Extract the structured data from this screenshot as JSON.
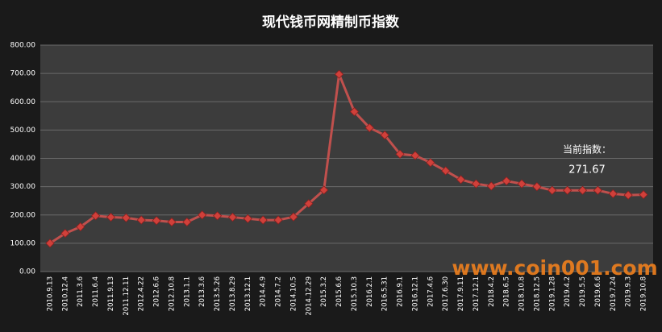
{
  "chart_data": {
    "type": "line",
    "title": "现代钱币网精制币指数",
    "categories": [
      "2010.9.13",
      "2010.12.4",
      "2011.3.6",
      "2011.6.4",
      "2011.9.13",
      "2011.12.11",
      "2012.4.22",
      "2012.6.6",
      "2012.10.8",
      "2013.1.1",
      "2013.3.6",
      "2013.5.26",
      "2013.8.29",
      "2013.12.1",
      "2014.4.9",
      "2014.7.2",
      "2014.10.5",
      "2014.12.29",
      "2015.3.2",
      "2015.6.6",
      "2015.10.3",
      "2016.2.1",
      "2016.5.31",
      "2016.9.1",
      "2016.12.1",
      "2017.4.6",
      "2017.6.30",
      "2017.9.11",
      "2017.12.1",
      "2018.4.2",
      "2018.6.5",
      "2018.10.8",
      "2018.12.5",
      "2019.1.28",
      "2019.4.2",
      "2019.5.5",
      "2019.6.6",
      "2019.7.24",
      "2019.9.3",
      "2019.10.8"
    ],
    "series": [
      {
        "name": "现代钱币网精制币指数",
        "color": "#c0504d",
        "values": [
          100,
          135,
          158,
          197,
          192,
          190,
          182,
          180,
          175,
          175,
          200,
          197,
          192,
          187,
          182,
          182,
          193,
          240,
          288,
          697,
          565,
          508,
          482,
          415,
          410,
          385,
          356,
          325,
          310,
          302,
          320,
          310,
          300,
          287,
          287,
          287,
          287,
          275,
          270,
          271.67
        ]
      }
    ],
    "ylim": [
      0,
      800
    ],
    "yticks": [
      {
        "value": 0,
        "label": "0.00"
      },
      {
        "value": 100,
        "label": "100.00"
      },
      {
        "value": 200,
        "label": "200.00"
      },
      {
        "value": 300,
        "label": "300.00"
      },
      {
        "value": 400,
        "label": "400.00"
      },
      {
        "value": 500,
        "label": "500.00"
      },
      {
        "value": 600,
        "label": "600.00"
      },
      {
        "value": 700,
        "label": "700.00"
      },
      {
        "value": 800,
        "label": "800.00"
      }
    ],
    "grid": true,
    "annotations": [
      "当前指数：",
      "271.67",
      "www.coin001.com"
    ]
  }
}
